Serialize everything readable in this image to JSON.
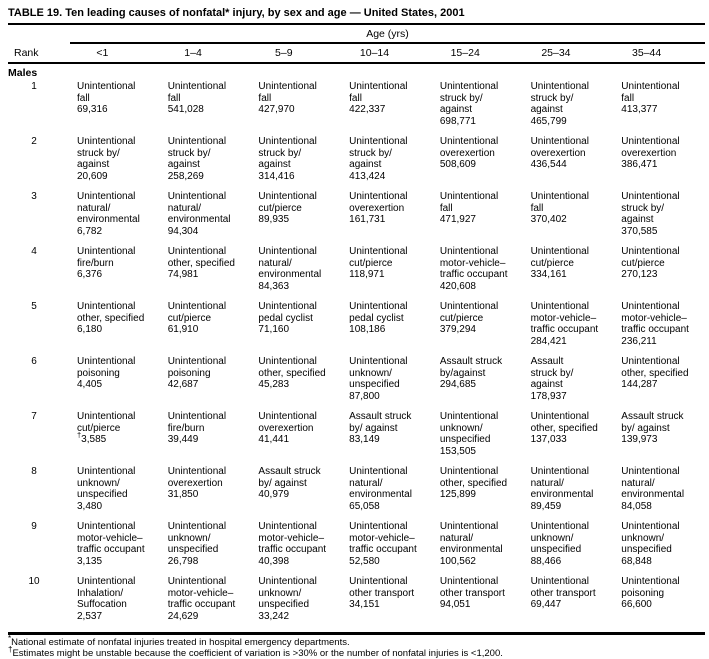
{
  "title": "TABLE 19. Ten leading causes of nonfatal* injury, by sex and age — United States, 2001",
  "table": {
    "age_group_header": "Age (yrs)",
    "rank_label": "Rank",
    "age_columns": [
      "<1",
      "1–4",
      "5–9",
      "10–14",
      "15–24",
      "25–34",
      "35–44"
    ],
    "section": "Males",
    "rows": [
      {
        "rank": "1",
        "cells": [
          {
            "cause": "Unintentional\nfall",
            "value": "69,316"
          },
          {
            "cause": "Unintentional\nfall",
            "value": "541,028"
          },
          {
            "cause": "Unintentional\nfall",
            "value": "427,970"
          },
          {
            "cause": "Unintentional\nfall",
            "value": "422,337"
          },
          {
            "cause": "Unintentional\nstruck by/\nagainst",
            "value": "698,771"
          },
          {
            "cause": "Unintentional\nstruck by/\nagainst",
            "value": "465,799"
          },
          {
            "cause": "Unintentional\nfall",
            "value": "413,377"
          }
        ]
      },
      {
        "rank": "2",
        "cells": [
          {
            "cause": "Unintentional\nstruck by/\nagainst",
            "value": "20,609"
          },
          {
            "cause": "Unintentional\nstruck by/\nagainst",
            "value": "258,269"
          },
          {
            "cause": "Unintentional\nstruck by/\nagainst",
            "value": "314,416"
          },
          {
            "cause": "Unintentional\nstruck by/\nagainst",
            "value": "413,424"
          },
          {
            "cause": "Unintentional\noverexertion",
            "value": "508,609"
          },
          {
            "cause": "Unintentional\noverexertion",
            "value": "436,544"
          },
          {
            "cause": "Unintentional\noverexertion",
            "value": "386,471"
          }
        ]
      },
      {
        "rank": "3",
        "cells": [
          {
            "cause": "Unintentional\nnatural/\nenvironmental",
            "value": "6,782"
          },
          {
            "cause": "Unintentional\nnatural/\nenvironmental",
            "value": "94,304"
          },
          {
            "cause": "Unintentional\ncut/pierce",
            "value": "89,935"
          },
          {
            "cause": "Unintentional\noverexertion",
            "value": "161,731"
          },
          {
            "cause": "Unintentional\nfall",
            "value": "471,927"
          },
          {
            "cause": "Unintentional\nfall",
            "value": "370,402"
          },
          {
            "cause": "Unintentional\nstruck by/\nagainst",
            "value": "370,585"
          }
        ]
      },
      {
        "rank": "4",
        "cells": [
          {
            "cause": "Unintentional\nfire/burn",
            "value": "6,376"
          },
          {
            "cause": "Unintentional\nother, specified",
            "value": "74,981"
          },
          {
            "cause": "Unintentional\nnatural/\nenvironmental",
            "value": "84,363"
          },
          {
            "cause": "Unintentional\ncut/pierce",
            "value": "118,971"
          },
          {
            "cause": "Unintentional\nmotor-vehicle–\ntraffic occupant",
            "value": "420,608"
          },
          {
            "cause": "Unintentional\ncut/pierce",
            "value": "334,161"
          },
          {
            "cause": "Unintentional\ncut/pierce",
            "value": "270,123"
          }
        ]
      },
      {
        "rank": "5",
        "cells": [
          {
            "cause": "Unintentional\nother, specified",
            "value": "6,180"
          },
          {
            "cause": "Unintentional\ncut/pierce",
            "value": "61,910"
          },
          {
            "cause": "Unintentional\npedal cyclist",
            "value": "71,160"
          },
          {
            "cause": "Unintentional\npedal cyclist",
            "value": "108,186"
          },
          {
            "cause": "Unintentional\ncut/pierce",
            "value": "379,294"
          },
          {
            "cause": "Unintentional\nmotor-vehicle–\ntraffic occupant",
            "value": "284,421"
          },
          {
            "cause": "Unintentional\nmotor-vehicle–\ntraffic occupant",
            "value": "236,211"
          }
        ]
      },
      {
        "rank": "6",
        "cells": [
          {
            "cause": "Unintentional\npoisoning",
            "value": "4,405"
          },
          {
            "cause": "Unintentional\npoisoning",
            "value": "42,687"
          },
          {
            "cause": "Unintentional\nother, specified",
            "value": "45,283"
          },
          {
            "cause": "Unintentional\nunknown/\nunspecified",
            "value": "87,800"
          },
          {
            "cause": "Assault struck\nby/against",
            "value": "294,685"
          },
          {
            "cause": "Assault\nstruck by/\nagainst",
            "value": "178,937"
          },
          {
            "cause": "Unintentional\nother, specified",
            "value": "144,287"
          }
        ]
      },
      {
        "rank": "7",
        "cells": [
          {
            "cause": "Unintentional\ncut/pierce",
            "note": "†",
            "value": "3,585"
          },
          {
            "cause": "Unintentional\nfire/burn",
            "value": "39,449"
          },
          {
            "cause": "Unintentional\noverexertion",
            "value": "41,441"
          },
          {
            "cause": "Assault struck\nby/ against",
            "value": "83,149"
          },
          {
            "cause": "Unintentional\nunknown/\nunspecified",
            "value": "153,505"
          },
          {
            "cause": "Unintentional\nother, specified",
            "value": "137,033"
          },
          {
            "cause": "Assault struck\nby/ against",
            "value": "139,973"
          }
        ]
      },
      {
        "rank": "8",
        "cells": [
          {
            "cause": "Unintentional\nunknown/\nunspecified",
            "value": "3,480"
          },
          {
            "cause": "Unintentional\noverexertion",
            "value": "31,850"
          },
          {
            "cause": "Assault struck\nby/ against",
            "value": "40,979"
          },
          {
            "cause": "Unintentional\nnatural/\nenvironmental",
            "value": "65,058"
          },
          {
            "cause": "Unintentional\nother, specified",
            "value": "125,899"
          },
          {
            "cause": "Unintentional\nnatural/\nenvironmental",
            "value": "89,459"
          },
          {
            "cause": "Unintentional\nnatural/\nenvironmental",
            "value": "84,058"
          }
        ]
      },
      {
        "rank": "9",
        "cells": [
          {
            "cause": "Unintentional\nmotor-vehicle–\ntraffic occupant",
            "value": "3,135"
          },
          {
            "cause": "Unintentional\nunknown/\nunspecified",
            "value": "26,798"
          },
          {
            "cause": "Unintentional\nmotor-vehicle–\ntraffic occupant",
            "value": "40,398"
          },
          {
            "cause": "Unintentional\nmotor-vehicle–\ntraffic occupant",
            "value": "52,580"
          },
          {
            "cause": "Unintentional\nnatural/\nenvironmental",
            "value": "100,562"
          },
          {
            "cause": "Unintentional\nunknown/\nunspecified",
            "value": "88,466"
          },
          {
            "cause": "Unintentional\nunknown/\nunspecified",
            "value": "68,848"
          }
        ]
      },
      {
        "rank": "10",
        "cells": [
          {
            "cause": "Unintentional\nInhalation/\nSuffocation",
            "value": "2,537"
          },
          {
            "cause": "Unintentional\nmotor-vehicle–\ntraffic occupant",
            "value": "24,629"
          },
          {
            "cause": "Unintentional\nunknown/\nunspecified",
            "value": "33,242"
          },
          {
            "cause": "Unintentional\nother transport",
            "value": "34,151"
          },
          {
            "cause": "Unintentional\nother transport",
            "value": "94,051"
          },
          {
            "cause": "Unintentional\nother transport",
            "value": "69,447"
          },
          {
            "cause": "Unintentional\npoisoning",
            "value": "66,600"
          }
        ]
      }
    ]
  },
  "footnotes": [
    {
      "marker": "*",
      "text": "National estimate of nonfatal injuries treated in hospital emergency departments."
    },
    {
      "marker": "†",
      "text": "Estimates might be unstable because the coefficient of variation is >30% or the number of nonfatal injuries is <1,200."
    }
  ]
}
